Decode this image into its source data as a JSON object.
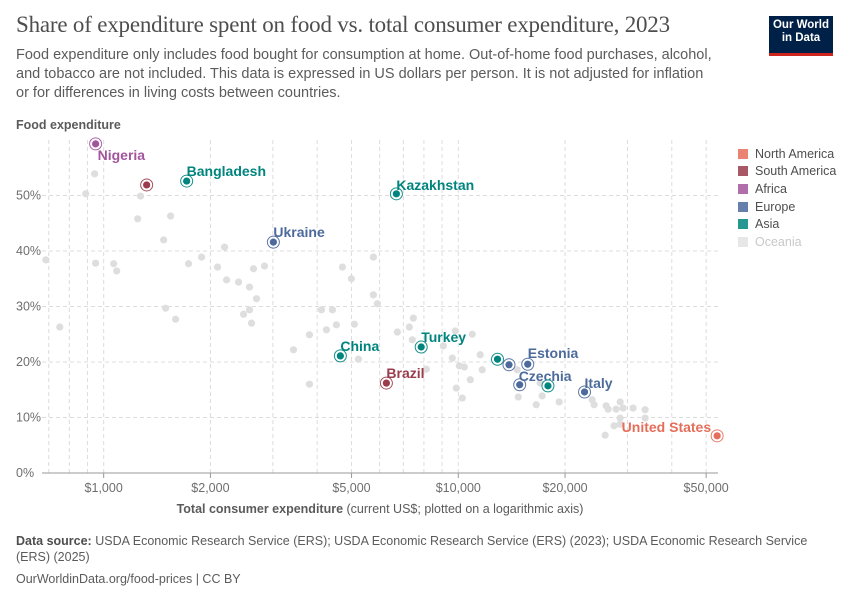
{
  "header": {
    "title": "Share of expenditure spent on food vs. total consumer expenditure, 2023",
    "subtitle": "Food expenditure only includes food bought for consumption at home. Out-of-home food purchases, alcohol, and tobacco are not included. This data is expressed in US dollars per person. It is not adjusted for inflation or for differences in living costs between countries.",
    "logo_line1": "Our World",
    "logo_line2": "in Data"
  },
  "footer": {
    "source_label": "Data source:",
    "source_text": "USDA Economic Research Service (ERS); USDA Economic Research Service (ERS) (2023); USDA Economic Research Service (ERS) (2025)",
    "url_text": "OurWorldinData.org/food-prices | CC BY"
  },
  "chart_data": {
    "type": "scatter",
    "title": "Share of expenditure spent on food vs. total consumer expenditure, 2023",
    "ylabel": "Food expenditure",
    "xlabel_bold": "Total consumer expenditure",
    "xlabel_rest": "(current US$; plotted on a logarithmic axis)",
    "x_scale": "log",
    "xlim": [
      670,
      54000
    ],
    "ylim": [
      0,
      60
    ],
    "grid": true,
    "legend_placement": "right",
    "x_ticks": [
      {
        "value": 1000,
        "label": "$1,000"
      },
      {
        "value": 2000,
        "label": "$2,000"
      },
      {
        "value": 5000,
        "label": "$5,000"
      },
      {
        "value": 10000,
        "label": "$10,000"
      },
      {
        "value": 20000,
        "label": "$20,000"
      },
      {
        "value": 50000,
        "label": "$50,000"
      }
    ],
    "y_ticks": [
      {
        "value": 0,
        "label": "0%"
      },
      {
        "value": 10,
        "label": "10%"
      },
      {
        "value": 20,
        "label": "20%"
      },
      {
        "value": 30,
        "label": "30%"
      },
      {
        "value": 40,
        "label": "40%"
      },
      {
        "value": 50,
        "label": "50%"
      }
    ],
    "legend": [
      {
        "name": "North America",
        "color": "#e56e5a"
      },
      {
        "name": "South America",
        "color": "#9a3c4b"
      },
      {
        "name": "Africa",
        "color": "#a2559c"
      },
      {
        "name": "Europe",
        "color": "#4c6a9c"
      },
      {
        "name": "Asia",
        "color": "#00847e"
      },
      {
        "name": "Oceania",
        "color": "#dddddd",
        "faded": true
      }
    ],
    "background_color": "#dedede",
    "highlighted": [
      {
        "label": "Nigeria",
        "region": "Africa",
        "x": 949,
        "y": 59.3
      },
      {
        "label": "",
        "region": "South America",
        "x": 1322,
        "y": 51.9
      },
      {
        "label": "Bangladesh",
        "region": "Asia",
        "x": 1714,
        "y": 52.6
      },
      {
        "label": "Kazakhstan",
        "region": "Asia",
        "x": 6690,
        "y": 50.3
      },
      {
        "label": "Ukraine",
        "region": "Europe",
        "x": 3010,
        "y": 41.6
      },
      {
        "label": "China",
        "region": "Asia",
        "x": 4650,
        "y": 21.1
      },
      {
        "label": "Brazil",
        "region": "South America",
        "x": 6270,
        "y": 16.2
      },
      {
        "label": "Turkey",
        "region": "Asia",
        "x": 7860,
        "y": 22.7
      },
      {
        "label": "",
        "region": "Asia",
        "x": 12900,
        "y": 20.5
      },
      {
        "label": "",
        "region": "Europe",
        "x": 13900,
        "y": 19.5
      },
      {
        "label": "Estonia",
        "region": "Europe",
        "x": 15700,
        "y": 19.6
      },
      {
        "label": "Czechia",
        "region": "Europe",
        "x": 14900,
        "y": 15.9
      },
      {
        "label": "",
        "region": "Asia",
        "x": 17900,
        "y": 15.7
      },
      {
        "label": "Italy",
        "region": "Europe",
        "x": 22700,
        "y": 14.6
      },
      {
        "label": "United States",
        "region": "North America",
        "x": 53700,
        "y": 6.7
      }
    ],
    "other_points": [
      [
        943,
        53.9
      ],
      [
        890,
        50.3
      ],
      [
        1271,
        49.9
      ],
      [
        1247,
        45.8
      ],
      [
        1544,
        46.3
      ],
      [
        1476,
        42.0
      ],
      [
        2192,
        40.7
      ],
      [
        687,
        38.4
      ],
      [
        949,
        37.8
      ],
      [
        1067,
        37.7
      ],
      [
        1088,
        36.4
      ],
      [
        1735,
        37.7
      ],
      [
        1888,
        38.9
      ],
      [
        2095,
        37.1
      ],
      [
        2221,
        34.8
      ],
      [
        2401,
        34.4
      ],
      [
        2646,
        36.8
      ],
      [
        2841,
        37.3
      ],
      [
        2578,
        33.5
      ],
      [
        2698,
        31.4
      ],
      [
        1495,
        29.7
      ],
      [
        1595,
        27.7
      ],
      [
        752,
        26.3
      ],
      [
        2480,
        28.6
      ],
      [
        2578,
        29.4
      ],
      [
        2612,
        27.0
      ],
      [
        4712,
        37.1
      ],
      [
        4995,
        35.0
      ],
      [
        5762,
        38.9
      ],
      [
        5762,
        32.1
      ],
      [
        5913,
        30.5
      ],
      [
        4113,
        29.4
      ],
      [
        4417,
        29.4
      ],
      [
        4532,
        26.7
      ],
      [
        5093,
        26.8
      ],
      [
        4248,
        25.8
      ],
      [
        3804,
        24.9
      ],
      [
        3429,
        22.2
      ],
      [
        5228,
        20.5
      ],
      [
        3804,
        16.0
      ],
      [
        6733,
        25.4
      ],
      [
        7278,
        26.3
      ],
      [
        7469,
        27.9
      ],
      [
        7420,
        24.0
      ],
      [
        8126,
        18.7
      ],
      [
        9073,
        22.9
      ],
      [
        9618,
        20.7
      ],
      [
        9806,
        25.6
      ],
      [
        10950,
        25.0
      ],
      [
        10070,
        19.3
      ],
      [
        10400,
        19.1
      ],
      [
        11530,
        21.3
      ],
      [
        11680,
        18.6
      ],
      [
        10810,
        16.8
      ],
      [
        9871,
        15.3
      ],
      [
        10260,
        13.5
      ],
      [
        14660,
        18.6
      ],
      [
        14760,
        13.7
      ],
      [
        16590,
        12.3
      ],
      [
        17240,
        13.9
      ],
      [
        19250,
        12.8
      ],
      [
        17020,
        16.2
      ],
      [
        23850,
        13.2
      ],
      [
        24160,
        12.3
      ],
      [
        26120,
        12.1
      ],
      [
        26460,
        11.5
      ],
      [
        27870,
        11.5
      ],
      [
        28600,
        12.8
      ],
      [
        29160,
        11.7
      ],
      [
        31120,
        11.7
      ],
      [
        33640,
        11.4
      ],
      [
        33640,
        9.9
      ],
      [
        28600,
        9.9
      ],
      [
        28600,
        8.8
      ],
      [
        27500,
        8.5
      ],
      [
        25950,
        6.8
      ]
    ]
  }
}
